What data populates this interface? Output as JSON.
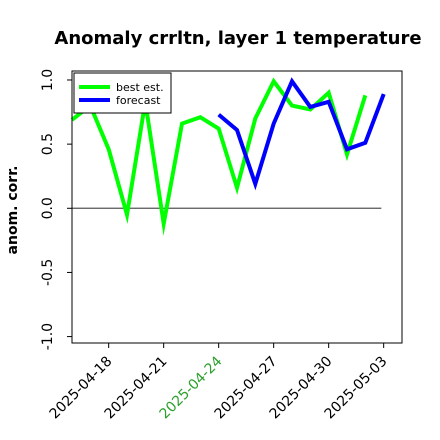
{
  "chart_data": {
    "type": "line",
    "title": "Anomaly crrltn, layer 1 temperature",
    "xlabel": "",
    "ylabel": "anom. corr.",
    "ylim": [
      -1.05,
      1.07
    ],
    "yticks": [
      -1.0,
      -0.5,
      0.0,
      0.5,
      1.0
    ],
    "ytick_labels": [
      "-1.0",
      "-0.5",
      "0.0",
      "0.5",
      "1.0"
    ],
    "x_range": [
      "2025-04-16",
      "2025-05-04"
    ],
    "xticks": [
      "2025-04-18",
      "2025-04-21",
      "2025-04-24",
      "2025-04-27",
      "2025-04-30",
      "2025-05-03"
    ],
    "xtick_labels": [
      "2025-04-18",
      "2025-04-21",
      "2025-04-24",
      "2025-04-27",
      "2025-04-30",
      "2025-05-03"
    ],
    "highlighted_tick": "2025-04-24",
    "highlight_color": "#2ca02c",
    "zero_line": 0.0,
    "legend_position": "top-left",
    "series": [
      {
        "name": "best est.",
        "color": "#00ff00",
        "x": [
          "2025-04-16",
          "2025-04-17",
          "2025-04-18",
          "2025-04-19",
          "2025-04-20",
          "2025-04-21",
          "2025-04-22",
          "2025-04-23",
          "2025-04-24",
          "2025-04-25",
          "2025-04-26",
          "2025-04-27",
          "2025-04-28",
          "2025-04-29",
          "2025-04-30",
          "2025-05-01",
          "2025-05-02",
          "2025-05-03"
        ],
        "values": [
          0.69,
          0.8,
          0.46,
          -0.05,
          0.83,
          -0.12,
          0.66,
          0.71,
          0.62,
          0.16,
          0.7,
          0.99,
          0.8,
          0.77,
          0.9,
          0.42,
          0.88,
          null
        ]
      },
      {
        "name": "forecast",
        "color": "#0000ff",
        "x": [
          "2025-04-24",
          "2025-04-25",
          "2025-04-26",
          "2025-04-27",
          "2025-04-28",
          "2025-04-29",
          "2025-04-30",
          "2025-05-01",
          "2025-05-02",
          "2025-05-03"
        ],
        "values": [
          0.73,
          0.61,
          0.19,
          0.66,
          0.99,
          0.79,
          0.83,
          0.46,
          0.51,
          0.89
        ]
      }
    ]
  }
}
